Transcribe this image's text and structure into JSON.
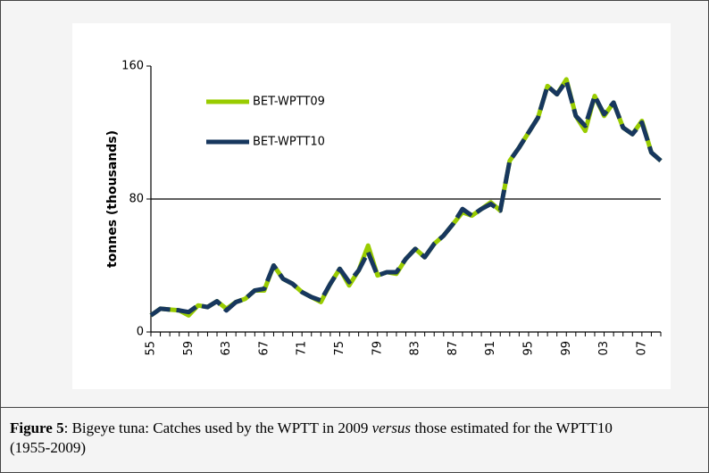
{
  "chart_data": {
    "type": "line",
    "ylabel": "tonnes (thousands)",
    "categories": [
      "55",
      null,
      null,
      null,
      "59",
      null,
      null,
      null,
      "63",
      null,
      null,
      null,
      "67",
      null,
      null,
      null,
      "71",
      null,
      null,
      null,
      "75",
      null,
      null,
      null,
      "79",
      null,
      null,
      null,
      "83",
      null,
      null,
      null,
      "87",
      null,
      null,
      null,
      "91",
      null,
      null,
      null,
      "95",
      null,
      null,
      null,
      "99",
      null,
      null,
      null,
      "03",
      null,
      null,
      null,
      "07",
      null,
      null
    ],
    "series": [
      {
        "name": "BET-WPTT09",
        "color": "#99cc00",
        "values": [
          10,
          14,
          13.5,
          13,
          10,
          16,
          15,
          18.5,
          14,
          18,
          20,
          25,
          25,
          40,
          32,
          29,
          24,
          21,
          18,
          29,
          38,
          28,
          37,
          52,
          34,
          36,
          35,
          44,
          50,
          45,
          53,
          58,
          65,
          72,
          70,
          74,
          78,
          73,
          103,
          111,
          120,
          129,
          148,
          143,
          152,
          130,
          121,
          142,
          130,
          138,
          123,
          119,
          127,
          108,
          103
        ]
      },
      {
        "name": "BET-WPTT10",
        "color": "#17375e",
        "values": [
          10,
          14,
          13.5,
          13,
          12,
          16,
          15,
          18.5,
          13,
          18,
          20,
          25,
          26,
          40,
          32,
          29,
          24,
          21,
          19,
          29,
          38,
          30,
          37,
          48,
          34,
          36,
          36,
          44,
          50,
          45,
          53,
          58,
          65,
          74,
          70,
          74,
          77,
          73,
          103,
          111,
          120,
          129,
          148,
          143,
          151,
          130,
          124,
          142,
          131,
          138,
          123,
          119,
          126,
          108,
          103
        ]
      }
    ],
    "ylim": [
      0,
      160
    ],
    "yticks": [
      0,
      80,
      160
    ],
    "grid": true,
    "legend": "upper left"
  },
  "caption": {
    "label": "Figure 5",
    "text_before": ":  Bigeye tuna: Catches used by the WPTT in 2009 ",
    "emphasis": "versus",
    "text_after": " those estimated for the WPTT10 (1955-2009)"
  }
}
